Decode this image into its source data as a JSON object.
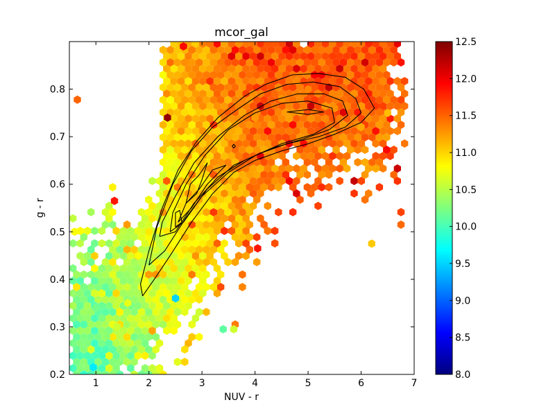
{
  "chart_data": {
    "type": "scatter",
    "subtype": "hexbin density with contour overlay",
    "title": "mcor_gal",
    "xlabel": "NUV - r",
    "ylabel": "g - r",
    "xlim": [
      0.5,
      7.0
    ],
    "ylim": [
      0.2,
      0.9
    ],
    "xticks": [
      "1",
      "2",
      "3",
      "4",
      "5",
      "6",
      "7"
    ],
    "yticks": [
      "0.2",
      "0.3",
      "0.4",
      "0.5",
      "0.6",
      "0.7",
      "0.8"
    ],
    "grid": false,
    "colorbar": {
      "colormap": "jet",
      "range": [
        8.0,
        12.5
      ],
      "ticks": [
        "8.0",
        "8.5",
        "9.0",
        "9.5",
        "10.0",
        "10.5",
        "11.0",
        "11.5",
        "12.0",
        "12.5"
      ]
    },
    "colormap_stops": [
      "#00007f",
      "#0000ff",
      "#007fff",
      "#00ffff",
      "#7fff7f",
      "#ffff00",
      "#ff7f00",
      "#ff0000",
      "#7f0000"
    ],
    "hexbins_sampled": [
      {
        "x": 0.95,
        "y": 0.215,
        "c": 9.6
      },
      {
        "x": 1.0,
        "y": 0.34,
        "c": 10.2
      },
      {
        "x": 1.2,
        "y": 0.28,
        "c": 10.3
      },
      {
        "x": 1.4,
        "y": 0.3,
        "c": 10.6
      },
      {
        "x": 1.6,
        "y": 0.35,
        "c": 10.7
      },
      {
        "x": 1.8,
        "y": 0.45,
        "c": 10.8
      },
      {
        "x": 2.0,
        "y": 0.5,
        "c": 10.9
      },
      {
        "x": 2.5,
        "y": 0.36,
        "c": 9.5
      },
      {
        "x": 2.6,
        "y": 0.58,
        "c": 11.0
      },
      {
        "x": 3.0,
        "y": 0.65,
        "c": 11.1
      },
      {
        "x": 3.5,
        "y": 0.7,
        "c": 11.2
      },
      {
        "x": 4.0,
        "y": 0.74,
        "c": 11.25
      },
      {
        "x": 4.5,
        "y": 0.78,
        "c": 11.3
      },
      {
        "x": 5.0,
        "y": 0.8,
        "c": 11.35
      },
      {
        "x": 5.5,
        "y": 0.76,
        "c": 11.3
      },
      {
        "x": 6.0,
        "y": 0.72,
        "c": 11.2
      },
      {
        "x": 6.5,
        "y": 0.75,
        "c": 11.1
      },
      {
        "x": 3.4,
        "y": 0.295,
        "c": 10.1
      },
      {
        "x": 3.6,
        "y": 0.295,
        "c": 10.6
      },
      {
        "x": 2.35,
        "y": 0.74,
        "c": 12.4
      },
      {
        "x": 2.65,
        "y": 0.89,
        "c": 11.9
      },
      {
        "x": 1.35,
        "y": 0.565,
        "c": 11.85
      },
      {
        "x": 4.05,
        "y": 0.465,
        "c": 11.85
      },
      {
        "x": 6.2,
        "y": 0.475,
        "c": 11.05
      },
      {
        "x": 0.6,
        "y": 0.5,
        "c": 10.8
      },
      {
        "x": 0.65,
        "y": 0.778,
        "c": 11.5
      }
    ],
    "contours": [
      [
        [
          1.88,
          0.365
        ],
        [
          2.1,
          0.4
        ],
        [
          2.4,
          0.45
        ],
        [
          2.8,
          0.52
        ],
        [
          3.2,
          0.58
        ],
        [
          3.6,
          0.625
        ],
        [
          4.0,
          0.65
        ],
        [
          4.5,
          0.67
        ],
        [
          5.0,
          0.685
        ],
        [
          5.5,
          0.705
        ],
        [
          6.0,
          0.73
        ],
        [
          6.25,
          0.76
        ],
        [
          6.05,
          0.8
        ],
        [
          5.7,
          0.825
        ],
        [
          5.2,
          0.833
        ],
        [
          4.7,
          0.83
        ],
        [
          4.2,
          0.81
        ],
        [
          3.8,
          0.785
        ],
        [
          3.3,
          0.74
        ],
        [
          2.9,
          0.69
        ],
        [
          2.55,
          0.63
        ],
        [
          2.25,
          0.55
        ],
        [
          2.0,
          0.46
        ],
        [
          1.84,
          0.39
        ],
        [
          1.88,
          0.365
        ]
      ],
      [
        [
          2.0,
          0.43
        ],
        [
          2.3,
          0.46
        ],
        [
          2.7,
          0.53
        ],
        [
          3.1,
          0.59
        ],
        [
          3.6,
          0.64
        ],
        [
          4.1,
          0.665
        ],
        [
          4.6,
          0.685
        ],
        [
          5.2,
          0.7
        ],
        [
          5.7,
          0.72
        ],
        [
          6.0,
          0.75
        ],
        [
          5.9,
          0.78
        ],
        [
          5.6,
          0.805
        ],
        [
          5.1,
          0.815
        ],
        [
          4.6,
          0.81
        ],
        [
          4.1,
          0.79
        ],
        [
          3.7,
          0.76
        ],
        [
          3.2,
          0.72
        ],
        [
          2.8,
          0.67
        ],
        [
          2.45,
          0.6
        ],
        [
          2.15,
          0.51
        ],
        [
          2.0,
          0.43
        ]
      ],
      [
        [
          2.2,
          0.49
        ],
        [
          2.5,
          0.5
        ],
        [
          2.85,
          0.56
        ],
        [
          3.3,
          0.615
        ],
        [
          3.8,
          0.65
        ],
        [
          4.3,
          0.675
        ],
        [
          4.9,
          0.695
        ],
        [
          5.4,
          0.715
        ],
        [
          5.75,
          0.745
        ],
        [
          5.65,
          0.775
        ],
        [
          5.3,
          0.79
        ],
        [
          4.8,
          0.79
        ],
        [
          4.3,
          0.775
        ],
        [
          3.8,
          0.745
        ],
        [
          3.3,
          0.7
        ],
        [
          2.85,
          0.645
        ],
        [
          2.5,
          0.575
        ],
        [
          2.25,
          0.52
        ],
        [
          2.2,
          0.49
        ]
      ],
      [
        [
          2.4,
          0.5
        ],
        [
          2.65,
          0.52
        ],
        [
          3.0,
          0.575
        ],
        [
          3.5,
          0.625
        ],
        [
          4.0,
          0.66
        ],
        [
          4.5,
          0.685
        ],
        [
          5.1,
          0.705
        ],
        [
          5.5,
          0.73
        ],
        [
          5.45,
          0.76
        ],
        [
          5.0,
          0.775
        ],
        [
          4.5,
          0.77
        ],
        [
          4.0,
          0.75
        ],
        [
          3.5,
          0.715
        ],
        [
          3.05,
          0.66
        ],
        [
          2.7,
          0.6
        ],
        [
          2.45,
          0.54
        ],
        [
          2.4,
          0.5
        ]
      ],
      [
        [
          2.55,
          0.52
        ],
        [
          2.8,
          0.55
        ],
        [
          3.1,
          0.6
        ],
        [
          3.45,
          0.64
        ],
        [
          3.2,
          0.63
        ],
        [
          2.95,
          0.59
        ],
        [
          2.7,
          0.56
        ],
        [
          2.55,
          0.52
        ]
      ],
      [
        [
          2.7,
          0.56
        ],
        [
          2.9,
          0.58
        ],
        [
          3.0,
          0.61
        ],
        [
          3.1,
          0.645
        ],
        [
          2.95,
          0.62
        ],
        [
          2.78,
          0.6
        ],
        [
          2.7,
          0.56
        ]
      ],
      [
        [
          2.5,
          0.51
        ],
        [
          2.62,
          0.52
        ],
        [
          2.58,
          0.545
        ],
        [
          2.5,
          0.54
        ],
        [
          2.5,
          0.51
        ]
      ],
      [
        [
          4.6,
          0.752
        ],
        [
          5.0,
          0.747
        ],
        [
          5.3,
          0.752
        ],
        [
          5.0,
          0.757
        ],
        [
          4.6,
          0.752
        ]
      ],
      [
        [
          3.6,
          0.676
        ],
        [
          3.63,
          0.68
        ],
        [
          3.6,
          0.684
        ],
        [
          3.57,
          0.68
        ],
        [
          3.6,
          0.676
        ]
      ]
    ]
  }
}
